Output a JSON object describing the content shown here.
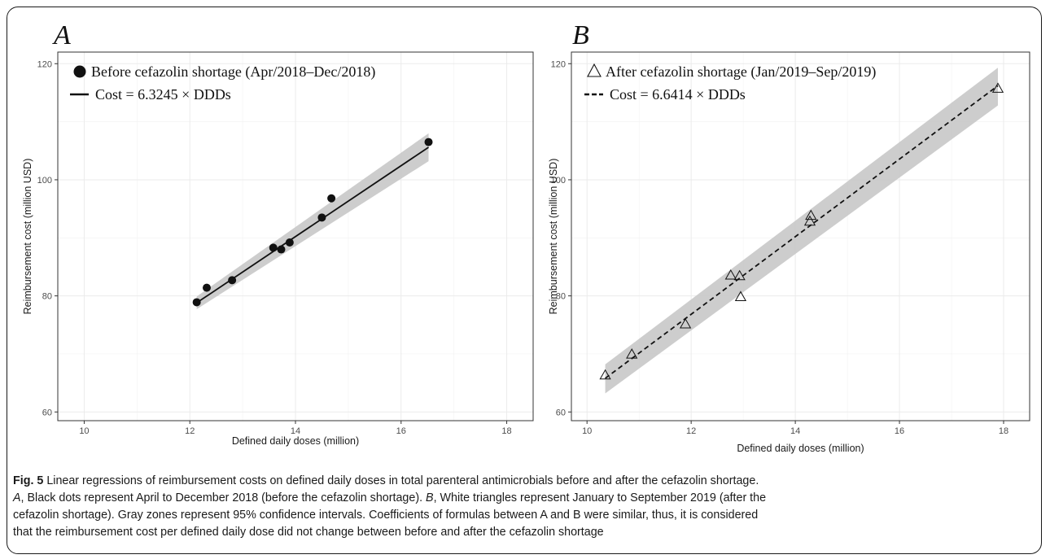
{
  "chart_data": [
    {
      "type": "scatter",
      "panel_label": "A",
      "title": "",
      "xlabel": "Defined daily doses (million)",
      "ylabel": "Reimbursement cost (million USD)",
      "xlim": [
        9.5,
        18.5
      ],
      "ylim": [
        58.5,
        122
      ],
      "xticks": [
        10,
        12,
        14,
        16,
        18
      ],
      "yticks": [
        60,
        80,
        100,
        120
      ],
      "grid": true,
      "legend_position": "top-left",
      "series": [
        {
          "name": "Before cefazolin shortage (Apr/2018–Dec/2018)",
          "marker": "filled-circle",
          "color": "#111111",
          "x": [
            12.13,
            12.32,
            12.8,
            13.58,
            13.73,
            13.89,
            14.5,
            14.68,
            16.52
          ],
          "y": [
            78.9,
            81.4,
            82.7,
            88.3,
            88.0,
            89.2,
            93.5,
            96.8,
            106.5
          ]
        }
      ],
      "fit": {
        "label": "Cost = 6.3245 ×  DDDs",
        "line_style": "solid",
        "x_range": [
          12.13,
          16.52
        ],
        "y_start": 78.8,
        "y_end": 105.6,
        "ci_lower_start": 77.7,
        "ci_upper_start": 79.9,
        "ci_lower_end": 103.2,
        "ci_upper_end": 108.0
      }
    },
    {
      "type": "scatter",
      "panel_label": "B",
      "title": "",
      "xlabel": "Defined daily doses (million)",
      "ylabel": "Reimbursement cost (million USD)",
      "xlim": [
        9.7,
        18.5
      ],
      "ylim": [
        58.5,
        122
      ],
      "xticks": [
        10,
        12,
        14,
        16,
        18
      ],
      "yticks": [
        60,
        80,
        100,
        120
      ],
      "grid": true,
      "legend_position": "top-left",
      "series": [
        {
          "name": "After cefazolin shortage (Jan/2019–Sep/2019)",
          "marker": "open-triangle",
          "color": "#111111",
          "x": [
            10.35,
            10.86,
            11.89,
            12.76,
            12.93,
            12.95,
            14.28,
            14.3,
            17.89
          ],
          "y": [
            66.3,
            69.9,
            75.1,
            83.5,
            83.4,
            79.8,
            92.8,
            93.8,
            115.7
          ]
        }
      ],
      "fit": {
        "label": "Cost = 6.6414 ×  DDDs",
        "line_style": "dashed",
        "x_range": [
          10.35,
          17.89
        ],
        "y_start": 65.8,
        "y_end": 116.2,
        "ci_lower_start": 63.2,
        "ci_upper_start": 68.2,
        "ci_lower_end": 112.8,
        "ci_upper_end": 119.3
      }
    }
  ],
  "caption": {
    "fig_label": "Fig. 5",
    "line1": " Linear regressions of reimbursement costs on defined daily doses in total parenteral antimicrobials before and after the cefazolin shortage.",
    "line2_a": "A",
    "line2_b": ", Black dots represent April to December 2018 (before the cefazolin shortage). ",
    "line2_c": "B",
    "line2_d": ", White triangles represent January to September 2019 (after the",
    "line3": "cefazolin shortage). Gray zones represent 95% confidence intervals. Coefficients of formulas between A and B were similar, thus, it is considered",
    "line4": "that the reimbursement cost per defined daily dose did not change between before and after the cefazolin shortage"
  }
}
